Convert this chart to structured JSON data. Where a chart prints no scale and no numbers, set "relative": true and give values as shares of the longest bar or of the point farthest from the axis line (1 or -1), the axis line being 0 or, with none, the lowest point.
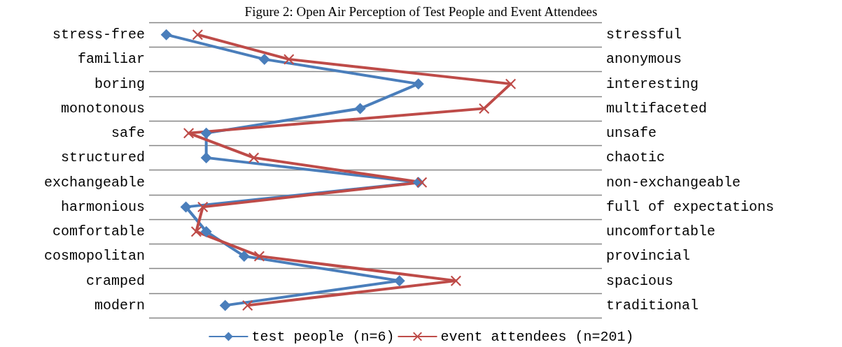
{
  "chart_data": {
    "type": "line",
    "title": "Figure 2: Open Air Perception of Test People and Event Attendees",
    "relative": true,
    "orientation": "horizontal",
    "categories": [
      "stress-free",
      "familiar",
      "boring",
      "monotonous",
      "safe",
      "structured",
      "exchangeable",
      "harmonious",
      "comfortable",
      "cosmopolitan",
      "cramped",
      "modern"
    ],
    "y2_categories": [
      "stressful",
      "anonymous",
      "interesting",
      "multifaceted",
      "unsafe",
      "chaotic",
      "non-exchangeable",
      "full of expectations",
      "uncomfortable",
      "provincial",
      "spacious",
      "traditional"
    ],
    "series": [
      {
        "name": "test people (n=6)",
        "color": "#4a7ebb",
        "marker": "diamond",
        "values": [
          0,
          0.285,
          0.732,
          0.563,
          0.116,
          0.116,
          0.732,
          0.057,
          0.116,
          0.226,
          0.677,
          0.171
        ]
      },
      {
        "name": "event attendees (n=201)",
        "color": "#be4b48",
        "marker": "cross",
        "values": [
          0.091,
          0.356,
          1,
          0.923,
          0.065,
          0.254,
          0.742,
          0.106,
          0.087,
          0.27,
          0.841,
          0.236
        ]
      }
    ],
    "grid": "y",
    "legend": "bottom",
    "line_style": "solid"
  }
}
